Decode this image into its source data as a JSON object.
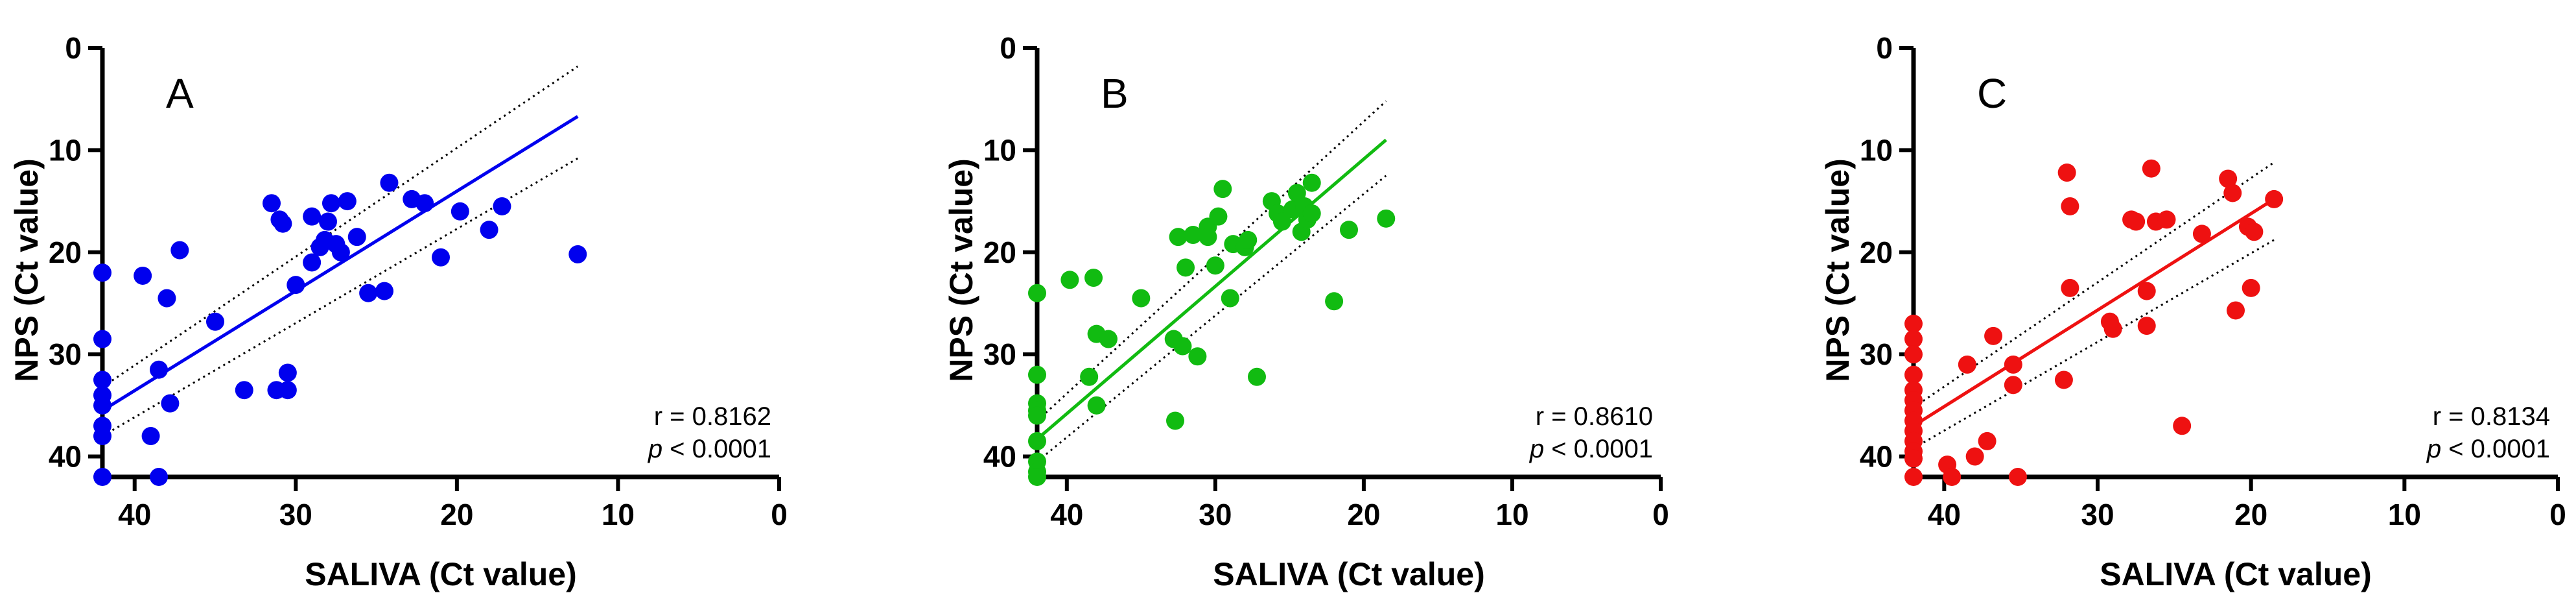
{
  "chart_data": [
    {
      "type": "scatter",
      "panel_label": "A",
      "color": "#0000ee",
      "xlabel": "SALIVA (Ct value)",
      "ylabel": "NPS (Ct value)",
      "xlim": [
        42,
        0
      ],
      "ylim": [
        0,
        42
      ],
      "x_ticks": [
        40,
        30,
        20,
        10,
        0
      ],
      "y_ticks": [
        0,
        10,
        20,
        30,
        40
      ],
      "r_text": "r = 0.8162",
      "p_symbol": "p",
      "p_text": " < 0.0001",
      "regression": {
        "x": [
          42,
          12.5
        ],
        "y": [
          35.5,
          6.7
        ]
      },
      "ci_upper": {
        "x": [
          42,
          12.5
        ],
        "y": [
          33.2,
          1.8
        ]
      },
      "ci_lower": {
        "x": [
          42,
          12.5
        ],
        "y": [
          38.0,
          10.8
        ]
      },
      "points": [
        [
          42,
          22
        ],
        [
          42,
          28.5
        ],
        [
          42,
          32.5
        ],
        [
          42,
          34
        ],
        [
          42,
          35
        ],
        [
          42,
          37
        ],
        [
          42,
          38
        ],
        [
          42,
          42
        ],
        [
          39.5,
          22.3
        ],
        [
          39,
          38
        ],
        [
          38.5,
          31.5
        ],
        [
          38.5,
          42
        ],
        [
          38,
          24.5
        ],
        [
          37.8,
          34.8
        ],
        [
          37.2,
          19.8
        ],
        [
          35,
          26.8
        ],
        [
          33.2,
          33.5
        ],
        [
          31.5,
          15.2
        ],
        [
          31.2,
          33.5
        ],
        [
          31,
          16.8
        ],
        [
          30.8,
          17.2
        ],
        [
          30.5,
          33.5
        ],
        [
          30.5,
          31.8
        ],
        [
          30,
          23.2
        ],
        [
          29,
          16.5
        ],
        [
          29,
          21
        ],
        [
          28.5,
          19.5
        ],
        [
          28.2,
          18.8
        ],
        [
          28,
          17
        ],
        [
          27.8,
          15.2
        ],
        [
          27.5,
          19.2
        ],
        [
          27.2,
          20
        ],
        [
          26.8,
          15
        ],
        [
          26.2,
          18.5
        ],
        [
          25.5,
          24
        ],
        [
          24.5,
          23.8
        ],
        [
          24.2,
          13.2
        ],
        [
          22.8,
          14.8
        ],
        [
          22,
          15.2
        ],
        [
          21,
          20.5
        ],
        [
          19.8,
          16
        ],
        [
          18,
          17.8
        ],
        [
          17.2,
          15.5
        ],
        [
          12.5,
          20.2
        ]
      ]
    },
    {
      "type": "scatter",
      "panel_label": "B",
      "color": "#11bb11",
      "xlabel": "SALIVA (Ct value)",
      "ylabel": "NPS (Ct value)",
      "xlim": [
        42,
        0
      ],
      "ylim": [
        0,
        42
      ],
      "x_ticks": [
        40,
        30,
        20,
        10,
        0
      ],
      "y_ticks": [
        0,
        10,
        20,
        30,
        40
      ],
      "r_text": "r = 0.8610",
      "p_symbol": "p",
      "p_text": " < 0.0001",
      "regression": {
        "x": [
          42,
          18.5
        ],
        "y": [
          38.3,
          9.0
        ]
      },
      "ci_upper": {
        "x": [
          42,
          18.5
        ],
        "y": [
          36.5,
          5.2
        ]
      },
      "ci_lower": {
        "x": [
          42,
          18.5
        ],
        "y": [
          40.5,
          12.5
        ]
      },
      "points": [
        [
          42,
          24
        ],
        [
          42,
          32
        ],
        [
          42,
          34.8
        ],
        [
          42,
          35.5
        ],
        [
          42,
          36
        ],
        [
          42,
          38.5
        ],
        [
          42,
          40.5
        ],
        [
          42,
          41.5
        ],
        [
          42,
          42
        ],
        [
          39.8,
          22.7
        ],
        [
          38.5,
          32.2
        ],
        [
          38.2,
          22.5
        ],
        [
          38,
          28
        ],
        [
          38,
          35
        ],
        [
          37.2,
          28.5
        ],
        [
          35,
          24.5
        ],
        [
          32.8,
          28.5
        ],
        [
          32.7,
          36.5
        ],
        [
          32.5,
          18.5
        ],
        [
          32.2,
          29.2
        ],
        [
          32,
          21.5
        ],
        [
          31.5,
          18.3
        ],
        [
          31.2,
          30.2
        ],
        [
          30.5,
          17.5
        ],
        [
          30.5,
          18.5
        ],
        [
          30,
          21.3
        ],
        [
          29.8,
          16.5
        ],
        [
          29.5,
          13.8
        ],
        [
          29,
          24.5
        ],
        [
          28.8,
          19.2
        ],
        [
          28,
          19.5
        ],
        [
          27.8,
          18.8
        ],
        [
          27.2,
          32.2
        ],
        [
          26.2,
          15
        ],
        [
          25.8,
          16.2
        ],
        [
          25.5,
          17
        ],
        [
          24.8,
          15.8
        ],
        [
          24.5,
          14.2
        ],
        [
          24.2,
          18
        ],
        [
          24,
          15.5
        ],
        [
          23.8,
          16.8
        ],
        [
          23.5,
          13.2
        ],
        [
          23.5,
          16.2
        ],
        [
          22,
          24.8
        ],
        [
          21,
          17.8
        ],
        [
          18.5,
          16.7
        ]
      ]
    },
    {
      "type": "scatter",
      "panel_label": "C",
      "color": "#ee1111",
      "xlabel": "SALIVA (Ct value)",
      "ylabel": "NPS (Ct value)",
      "xlim": [
        42,
        0
      ],
      "ylim": [
        0,
        42
      ],
      "x_ticks": [
        40,
        30,
        20,
        10,
        0
      ],
      "y_ticks": [
        0,
        10,
        20,
        30,
        40
      ],
      "r_text": "r = 0.8134",
      "p_symbol": "p",
      "p_text": " < 0.0001",
      "regression": {
        "x": [
          42,
          18.5
        ],
        "y": [
          37.0,
          14.8
        ]
      },
      "ci_upper": {
        "x": [
          42,
          18.5
        ],
        "y": [
          35.2,
          11.2
        ]
      },
      "ci_lower": {
        "x": [
          42,
          18.5
        ],
        "y": [
          39.2,
          18.8
        ]
      },
      "points": [
        [
          42,
          27
        ],
        [
          42,
          28.5
        ],
        [
          42,
          30
        ],
        [
          42,
          32
        ],
        [
          42,
          33.5
        ],
        [
          42,
          34.5
        ],
        [
          42,
          35.5
        ],
        [
          42,
          36.5
        ],
        [
          42,
          37.5
        ],
        [
          42,
          38.5
        ],
        [
          42,
          39.5
        ],
        [
          42,
          40.2
        ],
        [
          42,
          42
        ],
        [
          39.8,
          40.8
        ],
        [
          39.5,
          42
        ],
        [
          38.5,
          31
        ],
        [
          38,
          40
        ],
        [
          37.2,
          38.5
        ],
        [
          36.8,
          28.2
        ],
        [
          35.5,
          31
        ],
        [
          35.5,
          33
        ],
        [
          35.2,
          42
        ],
        [
          32.2,
          32.5
        ],
        [
          32,
          12.2
        ],
        [
          31.8,
          15.5
        ],
        [
          31.8,
          23.5
        ],
        [
          29.2,
          26.8
        ],
        [
          29,
          27.5
        ],
        [
          27.8,
          16.8
        ],
        [
          27.5,
          17
        ],
        [
          26.8,
          23.8
        ],
        [
          26.8,
          27.2
        ],
        [
          26.5,
          11.8
        ],
        [
          26.2,
          17
        ],
        [
          25.5,
          16.8
        ],
        [
          24.5,
          37
        ],
        [
          23.2,
          18.2
        ],
        [
          21.5,
          12.8
        ],
        [
          21.2,
          14.2
        ],
        [
          21,
          25.7
        ],
        [
          20.2,
          17.5
        ],
        [
          20,
          23.5
        ],
        [
          19.8,
          18
        ],
        [
          18.5,
          14.8
        ]
      ]
    }
  ]
}
